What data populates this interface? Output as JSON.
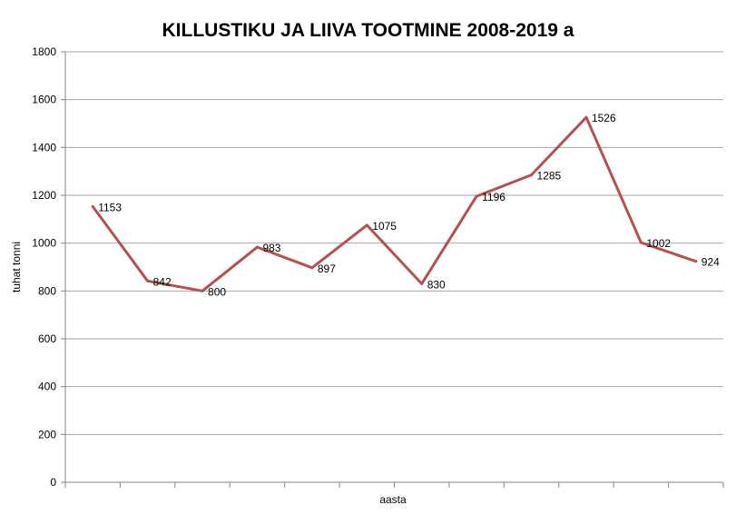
{
  "chart_data": {
    "type": "line",
    "title": "KILLUSTIKU JA LIIVA TOOTMINE 2008-2019 a",
    "xlabel": "aasta",
    "ylabel": "tuhat tonni",
    "ylim": [
      0,
      1800
    ],
    "yticks": [
      "0",
      "200",
      "400",
      "600",
      "800",
      "1000",
      "1200",
      "1400",
      "1600",
      "1800"
    ],
    "grid": true,
    "legend": "none",
    "series": [
      {
        "color": "#b5504e",
        "values": [
          1153,
          842,
          800,
          983,
          897,
          1075,
          830,
          1196,
          1285,
          1526,
          1002,
          924
        ],
        "data_labels": [
          "1153",
          "842",
          "800",
          "983",
          "897",
          "1075",
          "830",
          "1196",
          "1285",
          "1526",
          "1002",
          "924"
        ]
      }
    ]
  }
}
